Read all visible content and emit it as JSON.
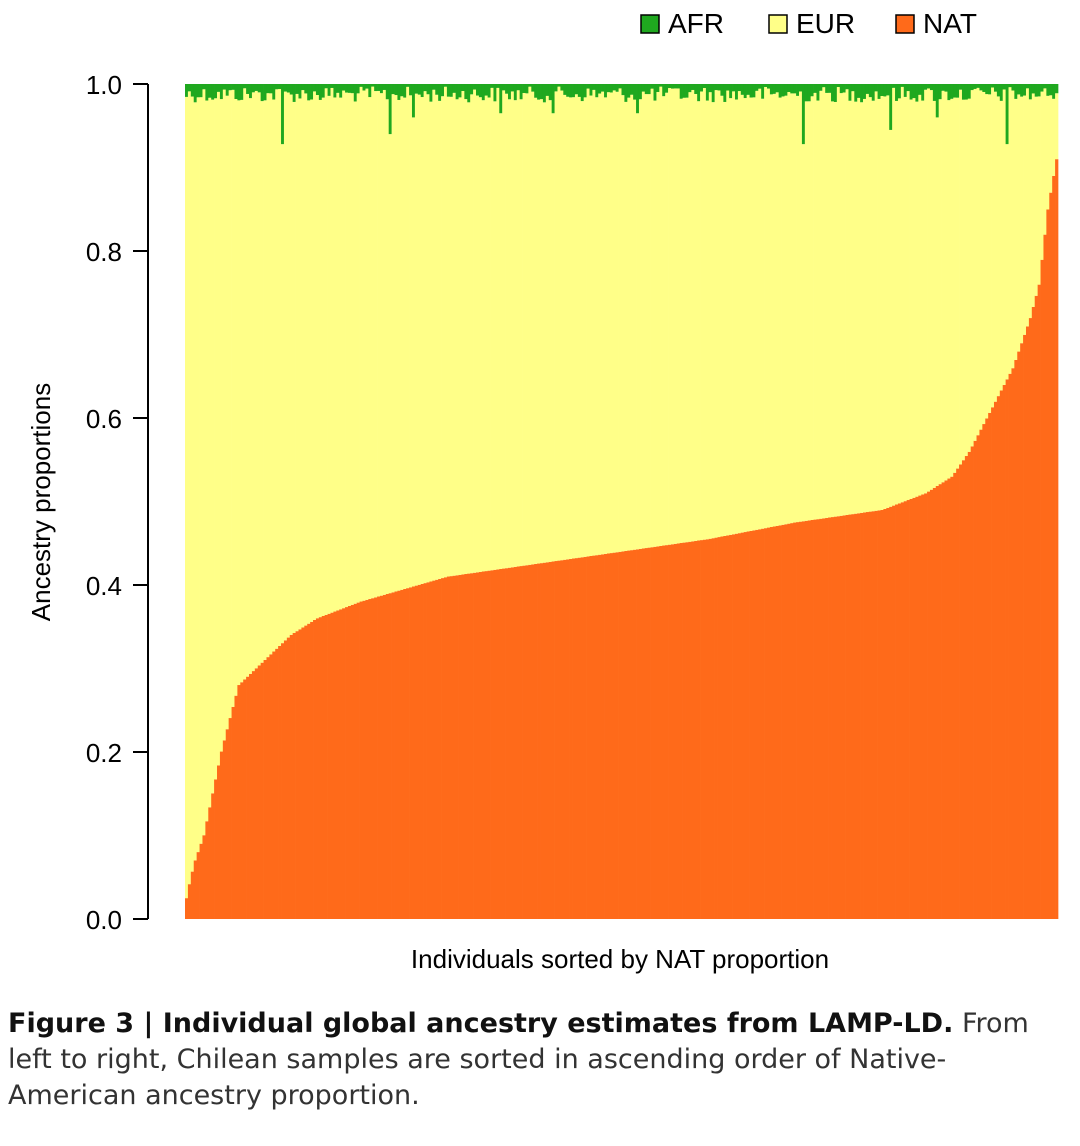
{
  "chart_data": {
    "type": "stacked-bar",
    "ylabel": "Ancestry proportions",
    "xlabel": "Individuals sorted by NAT proportion",
    "ylim": [
      0,
      1
    ],
    "yticks": [
      "0.0",
      "0.2",
      "0.4",
      "0.6",
      "0.8",
      "1.0"
    ],
    "legend_position": "top-right",
    "legend": [
      {
        "key": "AFR",
        "label": "AFR",
        "color": "#1fa81f"
      },
      {
        "key": "EUR",
        "label": "EUR",
        "color": "#ffff88"
      },
      {
        "key": "NAT",
        "label": "NAT",
        "color": "#ff6a1a"
      }
    ],
    "sample_count": 300,
    "nat_profile": {
      "position": [
        0,
        0.005,
        0.01,
        0.02,
        0.04,
        0.06,
        0.08,
        0.1,
        0.12,
        0.15,
        0.2,
        0.3,
        0.4,
        0.5,
        0.6,
        0.7,
        0.8,
        0.85,
        0.88,
        0.9,
        0.92,
        0.95,
        0.97,
        0.98,
        0.99,
        1.0
      ],
      "value": [
        0.025,
        0.05,
        0.07,
        0.1,
        0.2,
        0.28,
        0.3,
        0.32,
        0.34,
        0.36,
        0.38,
        0.41,
        0.425,
        0.44,
        0.455,
        0.475,
        0.49,
        0.51,
        0.53,
        0.56,
        0.6,
        0.66,
        0.72,
        0.76,
        0.85,
        0.91
      ]
    },
    "afr_typical_range": [
      0.003,
      0.022
    ],
    "afr_spikes": [
      {
        "position": 0.111,
        "value": 0.072
      },
      {
        "position": 0.233,
        "value": 0.06
      },
      {
        "position": 0.26,
        "value": 0.04
      },
      {
        "position": 0.36,
        "value": 0.035
      },
      {
        "position": 0.42,
        "value": 0.035
      },
      {
        "position": 0.52,
        "value": 0.035
      },
      {
        "position": 0.71,
        "value": 0.072
      },
      {
        "position": 0.81,
        "value": 0.055
      },
      {
        "position": 0.862,
        "value": 0.04
      },
      {
        "position": 0.944,
        "value": 0.072
      }
    ]
  },
  "caption": {
    "lead": "Figure 3 | Individual global ancestry estimates from LAMP-LD.",
    "body": "From left to right, Chilean samples are sorted in ascending order of Native-American ancestry proportion."
  }
}
